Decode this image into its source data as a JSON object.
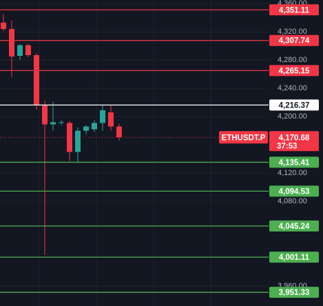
{
  "chart_data": {
    "type": "candlestick",
    "symbol": "ETHUSDT.P",
    "countdown": "37:53",
    "last": {
      "value": 4170.68,
      "label": "4,170.68"
    },
    "up_color": "#26a69a",
    "down_color": "#f23645",
    "ylim": [
      3932,
      4365
    ],
    "yticks": [
      {
        "value": 4360,
        "label": "4,360.00"
      },
      {
        "value": 4320,
        "label": "4,320.00"
      },
      {
        "value": 4280,
        "label": "4,280.00"
      },
      {
        "value": 4240,
        "label": "4,240.00"
      },
      {
        "value": 4200,
        "label": "4,200.00"
      },
      {
        "value": 4120,
        "label": "4,120.00"
      },
      {
        "value": 4080,
        "label": "4,080.00"
      },
      {
        "value": 3960,
        "label": "3,960.00"
      }
    ],
    "open": [
      4333,
      4324,
      4286,
      4301,
      4287,
      4216,
      4189,
      4191,
      4191,
      4150,
      4180,
      4182,
      4191,
      4206,
      4186
    ],
    "high": [
      4345,
      4336,
      4303,
      4303,
      4290,
      4223,
      4221,
      4195,
      4194,
      4185,
      4188,
      4195,
      4216,
      4216,
      4190
    ],
    "low": [
      4321,
      4256,
      4280,
      4284,
      4210,
      4004,
      4180,
      4188,
      4137,
      4135,
      4175,
      4178,
      4180,
      4180,
      4166
    ],
    "close": [
      4324,
      4285,
      4301,
      4287,
      4216,
      4189,
      4192,
      4192,
      4150,
      4180,
      4186,
      4191,
      4209,
      4186,
      4170.68
    ],
    "levels": [
      {
        "value": 4351.11,
        "label": "4,351.11",
        "color": "#f23645",
        "text_color": "#ffffff"
      },
      {
        "value": 4307.74,
        "label": "4,307.74",
        "color": "#f23645",
        "text_color": "#ffffff"
      },
      {
        "value": 4265.15,
        "label": "4,265.15",
        "color": "#f23645",
        "text_color": "#ffffff"
      },
      {
        "value": 4216.37,
        "label": "4,216.37",
        "color": "#ffffff",
        "text_color": "#131722"
      },
      {
        "value": 4135.41,
        "label": "4,135.41",
        "color": "#4caf50",
        "text_color": "#ffffff"
      },
      {
        "value": 4094.53,
        "label": "4,094.53",
        "color": "#4caf50",
        "text_color": "#ffffff"
      },
      {
        "value": 4045.24,
        "label": "4,045.24",
        "color": "#4caf50",
        "text_color": "#ffffff"
      },
      {
        "value": 4001.11,
        "label": "4,001.11",
        "color": "#4caf50",
        "text_color": "#ffffff"
      },
      {
        "value": 3951.33,
        "label": "3,951.33",
        "color": "#4caf50",
        "text_color": "#ffffff"
      }
    ]
  }
}
